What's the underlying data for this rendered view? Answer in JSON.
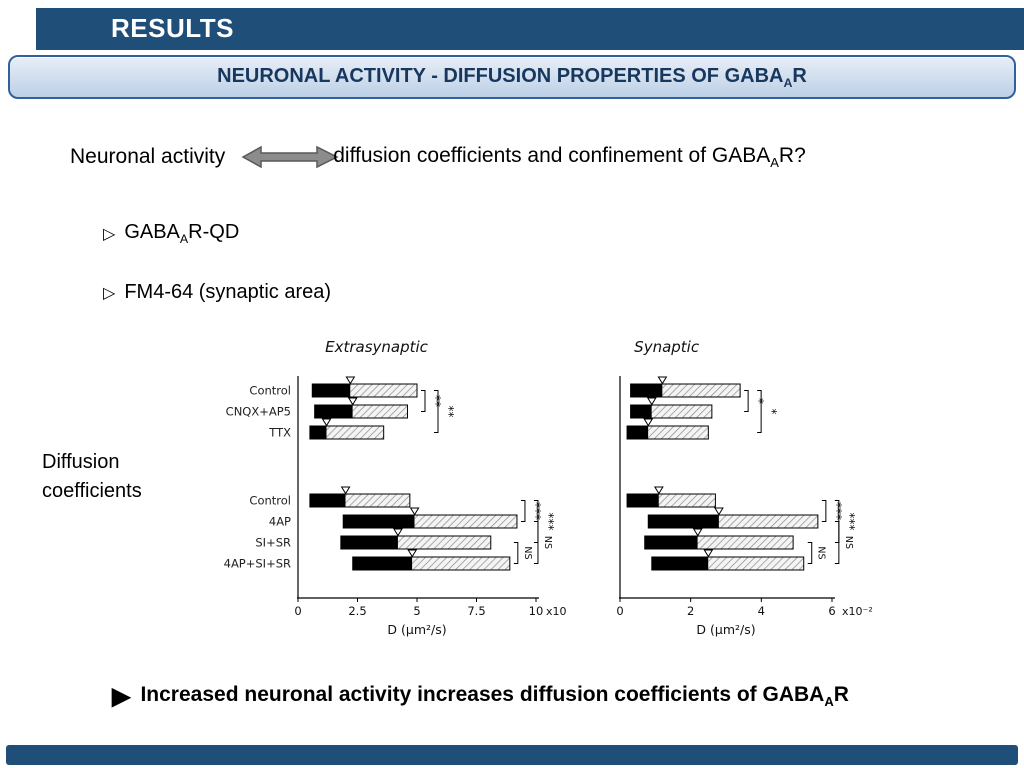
{
  "slide": {
    "header": {
      "title": "RESULTS"
    },
    "banner": {
      "rich": [
        {
          "t": "NEURONAL ACTIVITY - DIFFUSION PROPERTIES OF GABA"
        },
        {
          "t": "A",
          "sub": true
        },
        {
          "t": "R"
        }
      ]
    },
    "question": {
      "left": "Neuronal activity",
      "right_rich": [
        {
          "t": "diffusion coefficients and confinement of GABA"
        },
        {
          "t": "A",
          "sub": true
        },
        {
          "t": "R?"
        }
      ]
    },
    "bullets": [
      {
        "marker": "▷",
        "rich": [
          {
            "t": "GABA"
          },
          {
            "t": "A",
            "sub": true
          },
          {
            "t": "R-QD"
          }
        ]
      },
      {
        "marker": "▷",
        "rich": [
          {
            "t": "FM4-64 (synaptic area)"
          }
        ]
      }
    ],
    "figure_label": {
      "line1": "Diffusion",
      "line2": "coefficients"
    },
    "conclusion": {
      "marker": "▶",
      "rich": [
        {
          "t": "Increased neuronal activity increases diffusion coefficients of GABA"
        },
        {
          "t": "A",
          "sub": true
        },
        {
          "t": "R"
        }
      ]
    }
  },
  "colors": {
    "navy": "#1F4E79",
    "banner_border": "#31619c",
    "banner_text": "#17375E",
    "banner_top": "#e8eef7",
    "banner_bottom": "#bcd0e6",
    "arrow": "#8c8c8c",
    "arrow_edge": "#595959",
    "bar_black": "#000000",
    "hatch_line": "#8a8a8a",
    "hatch_bg": "#f4f4f4"
  },
  "chart_data": [
    {
      "type": "bar",
      "orientation": "horizontal",
      "title": "Extrasynaptic",
      "show_labels": true,
      "xmax": 10,
      "ticks": [
        0,
        2.5,
        5,
        7.5,
        10
      ],
      "tick_labels": [
        "0",
        "2.5",
        "5",
        "7.5",
        "10"
      ],
      "axis_suffix": "x10⁻²",
      "xlabel": "D (μm²/s)",
      "note": "bars are interquartile ranges ×10⁻² μm²/s: black q1→median, hatched median→q3, open triangle at median",
      "groups": [
        {
          "bars": [
            {
              "label": "Control",
              "q1": 0.6,
              "med": 2.2,
              "q3": 5.0
            },
            {
              "label": "CNQX+AP5",
              "q1": 0.7,
              "med": 2.3,
              "q3": 4.6
            },
            {
              "label": "TTX",
              "q1": 0.5,
              "med": 1.2,
              "q3": 3.6
            }
          ]
        },
        {
          "bars": [
            {
              "label": "Control",
              "q1": 0.5,
              "med": 2.0,
              "q3": 4.7
            },
            {
              "label": "4AP",
              "q1": 1.9,
              "med": 4.9,
              "q3": 9.2
            },
            {
              "label": "SI+SR",
              "q1": 1.8,
              "med": 4.2,
              "q3": 8.1
            },
            {
              "label": "4AP+SI+SR",
              "q1": 2.3,
              "med": 4.8,
              "q3": 8.9
            }
          ]
        }
      ],
      "annotations": [
        {
          "group": 0,
          "from": 0,
          "to": 1,
          "label": "**",
          "level": 0
        },
        {
          "group": 0,
          "from": 0,
          "to": 2,
          "label": "**",
          "level": 1
        },
        {
          "group": 1,
          "from": 0,
          "to": 1,
          "label": "***",
          "level": 0
        },
        {
          "group": 1,
          "from": 0,
          "to": 2,
          "label": "***",
          "level": 1
        },
        {
          "group": 1,
          "from": 2,
          "to": 3,
          "label": "NS",
          "level": 0
        },
        {
          "group": 1,
          "from": 1,
          "to": 3,
          "label": "NS",
          "level": 1
        }
      ]
    },
    {
      "type": "bar",
      "orientation": "horizontal",
      "title": "Synaptic",
      "show_labels": false,
      "xmax": 6,
      "ticks": [
        0,
        2,
        4,
        6
      ],
      "tick_labels": [
        "0",
        "2",
        "4",
        "6"
      ],
      "axis_suffix": "x10⁻²",
      "xlabel": "D (μm²/s)",
      "note": "same categories as Extrasynaptic panel",
      "groups": [
        {
          "bars": [
            {
              "label": "Control",
              "q1": 0.3,
              "med": 1.2,
              "q3": 3.4
            },
            {
              "label": "CNQX+AP5",
              "q1": 0.3,
              "med": 0.9,
              "q3": 2.6
            },
            {
              "label": "TTX",
              "q1": 0.2,
              "med": 0.8,
              "q3": 2.5
            }
          ]
        },
        {
          "bars": [
            {
              "label": "Control",
              "q1": 0.2,
              "med": 1.1,
              "q3": 2.7
            },
            {
              "label": "4AP",
              "q1": 0.8,
              "med": 2.8,
              "q3": 5.6
            },
            {
              "label": "SI+SR",
              "q1": 0.7,
              "med": 2.2,
              "q3": 4.9
            },
            {
              "label": "4AP+SI+SR",
              "q1": 0.9,
              "med": 2.5,
              "q3": 5.2
            }
          ]
        }
      ],
      "annotations": [
        {
          "group": 0,
          "from": 0,
          "to": 1,
          "label": "*",
          "level": 0
        },
        {
          "group": 0,
          "from": 0,
          "to": 2,
          "label": "*",
          "level": 1
        },
        {
          "group": 1,
          "from": 0,
          "to": 1,
          "label": "***",
          "level": 0
        },
        {
          "group": 1,
          "from": 0,
          "to": 2,
          "label": "***",
          "level": 1
        },
        {
          "group": 1,
          "from": 2,
          "to": 3,
          "label": "NS",
          "level": 0
        },
        {
          "group": 1,
          "from": 1,
          "to": 3,
          "label": "NS",
          "level": 1
        }
      ]
    }
  ]
}
